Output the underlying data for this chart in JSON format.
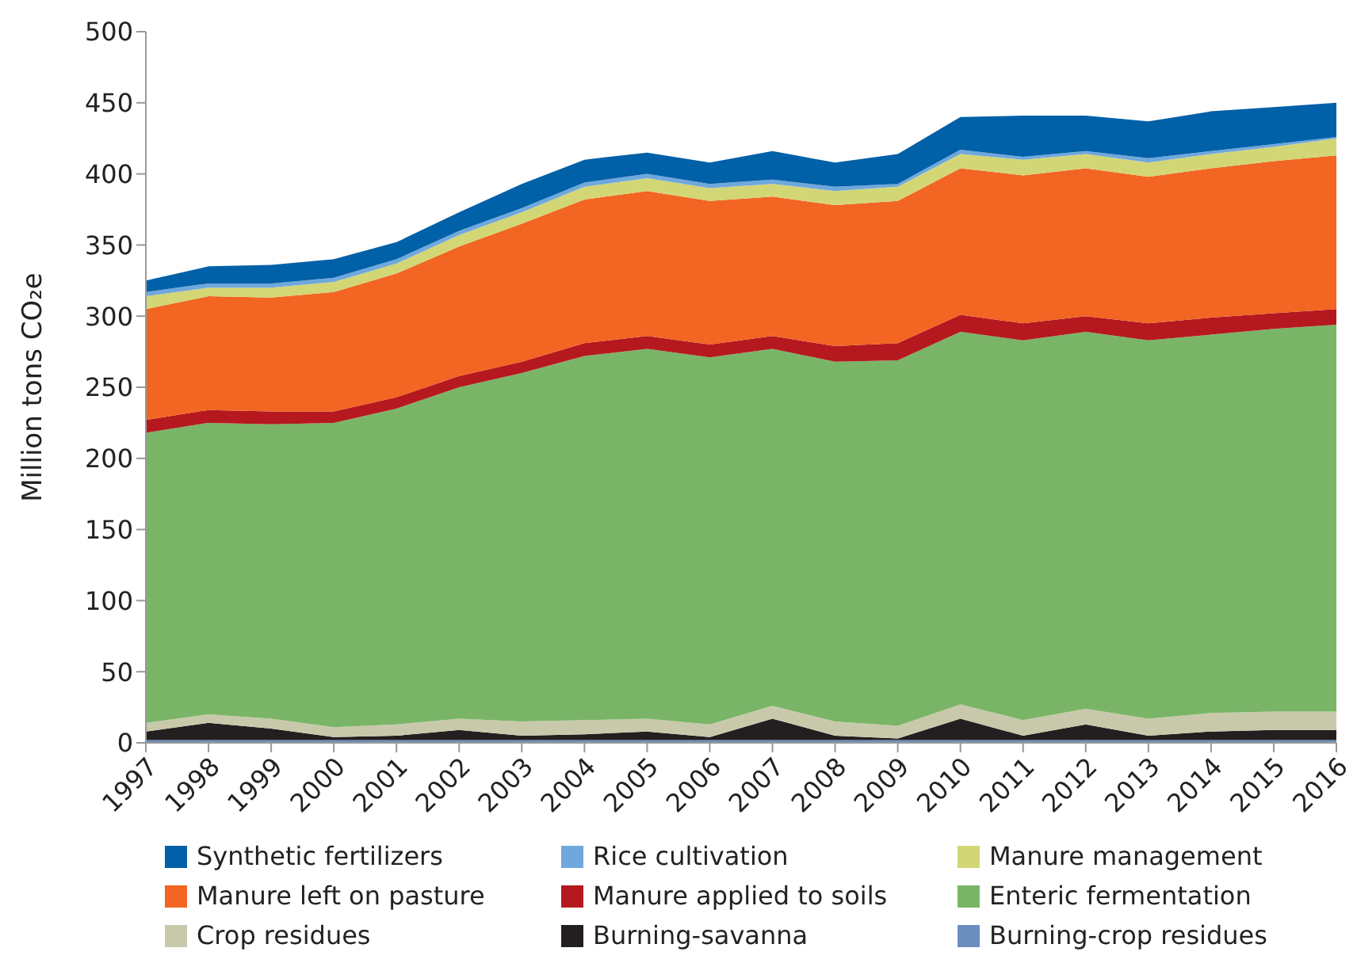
{
  "chart_data": {
    "type": "area",
    "stacked": true,
    "ylabel": "Million tons CO₂e",
    "categories": [
      "1997",
      "1998",
      "1999",
      "2000",
      "2001",
      "2002",
      "2003",
      "2004",
      "2005",
      "2006",
      "2007",
      "2008",
      "2009",
      "2010",
      "2011",
      "2012",
      "2013",
      "2014",
      "2015",
      "2016"
    ],
    "series": [
      {
        "name": "Burning-crop residues",
        "color": "#6c8ebf",
        "values": [
          2,
          2,
          2,
          2,
          2,
          2,
          2,
          2,
          2,
          2,
          2,
          2,
          2,
          2,
          2,
          2,
          2,
          2,
          2,
          2
        ]
      },
      {
        "name": "Burning-savanna",
        "color": "#231f20",
        "values": [
          6,
          12,
          8,
          2,
          3,
          7,
          3,
          4,
          6,
          2,
          15,
          3,
          1,
          15,
          3,
          11,
          3,
          6,
          7,
          7
        ]
      },
      {
        "name": "Crop residues",
        "color": "#c8c9aa",
        "values": [
          6,
          6,
          7,
          7,
          8,
          8,
          10,
          10,
          9,
          9,
          9,
          10,
          9,
          10,
          11,
          11,
          12,
          13,
          13,
          13
        ]
      },
      {
        "name": "Enteric fermentation",
        "color": "#7ab567",
        "values": [
          204,
          205,
          207,
          214,
          222,
          233,
          245,
          256,
          260,
          258,
          251,
          253,
          257,
          262,
          267,
          265,
          266,
          266,
          269,
          272
        ]
      },
      {
        "name": "Manure applied to soils",
        "color": "#b5191f",
        "values": [
          9,
          9,
          9,
          8,
          8,
          8,
          8,
          9,
          9,
          9,
          9,
          11,
          12,
          12,
          12,
          11,
          12,
          12,
          11,
          11
        ]
      },
      {
        "name": "Manure left on pasture",
        "color": "#f26522",
        "values": [
          78,
          80,
          80,
          84,
          87,
          91,
          97,
          101,
          102,
          101,
          98,
          99,
          100,
          103,
          104,
          104,
          103,
          105,
          107,
          108
        ]
      },
      {
        "name": "Manure management",
        "color": "#d3d675",
        "values": [
          9,
          6,
          7,
          7,
          7,
          8,
          8,
          9,
          9,
          9,
          9,
          10,
          10,
          10,
          11,
          10,
          10,
          10,
          10,
          12
        ]
      },
      {
        "name": "Rice cultivation",
        "color": "#6fa8dc",
        "values": [
          3,
          3,
          3,
          3,
          3,
          3,
          3,
          3,
          3,
          3,
          3,
          3,
          2,
          3,
          2,
          2,
          3,
          2,
          2,
          1
        ]
      },
      {
        "name": "Synthetic fertilizers",
        "color": "#0060a8",
        "values": [
          8,
          12,
          13,
          13,
          12,
          13,
          17,
          16,
          15,
          15,
          20,
          17,
          21,
          23,
          29,
          25,
          26,
          28,
          26,
          24
        ]
      }
    ],
    "ylim": [
      0,
      500
    ],
    "yticks": [
      0,
      50,
      100,
      150,
      200,
      250,
      300,
      350,
      400,
      450,
      500
    ],
    "grid": false,
    "legend": "bottom"
  }
}
